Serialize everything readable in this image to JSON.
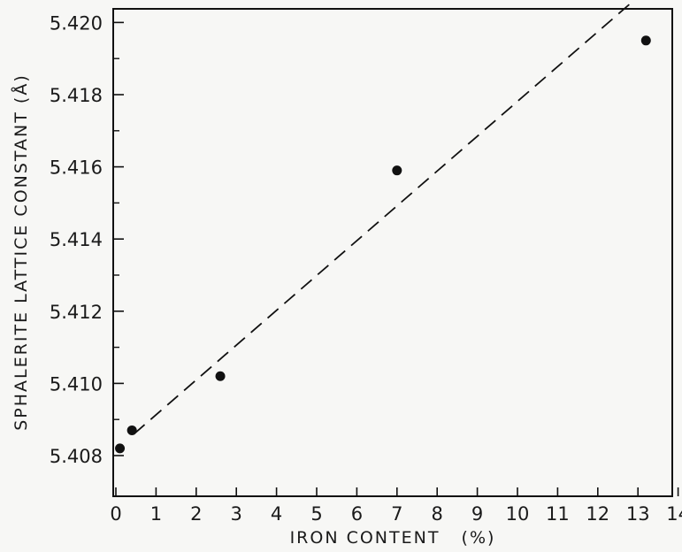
{
  "chart_data": {
    "type": "scatter",
    "title": "",
    "xlabel": "IRON CONTENT   (%)",
    "ylabel": "SPHALERITE LATTICE CONSTANT (Å)",
    "xlim": [
      0,
      14
    ],
    "ylim": [
      5.407,
      5.421
    ],
    "x_ticks": [
      0,
      1,
      2,
      3,
      4,
      5,
      6,
      7,
      8,
      9,
      10,
      11,
      12,
      13,
      14
    ],
    "x_tick_labels": [
      "0",
      "1",
      "2",
      "3",
      "4",
      "5",
      "6",
      "7",
      "8",
      "9",
      "10",
      "11",
      "12",
      "13",
      "14"
    ],
    "y_major_ticks": [
      5.408,
      5.41,
      5.412,
      5.414,
      5.416,
      5.418,
      5.42
    ],
    "y_tick_labels": [
      "5.408",
      "5.410",
      "5.412",
      "5.414",
      "5.416",
      "5.418",
      "5.420"
    ],
    "y_minor_ticks": [
      5.409,
      5.411,
      5.413,
      5.415,
      5.417,
      5.419
    ],
    "grid": false,
    "series": [
      {
        "x": [
          0.1,
          0.4,
          2.6,
          7.0,
          13.2
        ],
        "y": [
          5.4082,
          5.4087,
          5.4102,
          5.4159,
          5.4195
        ],
        "marker": "filled-circle",
        "color": "#111111"
      }
    ],
    "fit_line": {
      "style": "dashed",
      "color": "#111111",
      "x": [
        0.45,
        13.2
      ],
      "y": [
        5.4086,
        5.4209
      ]
    }
  }
}
